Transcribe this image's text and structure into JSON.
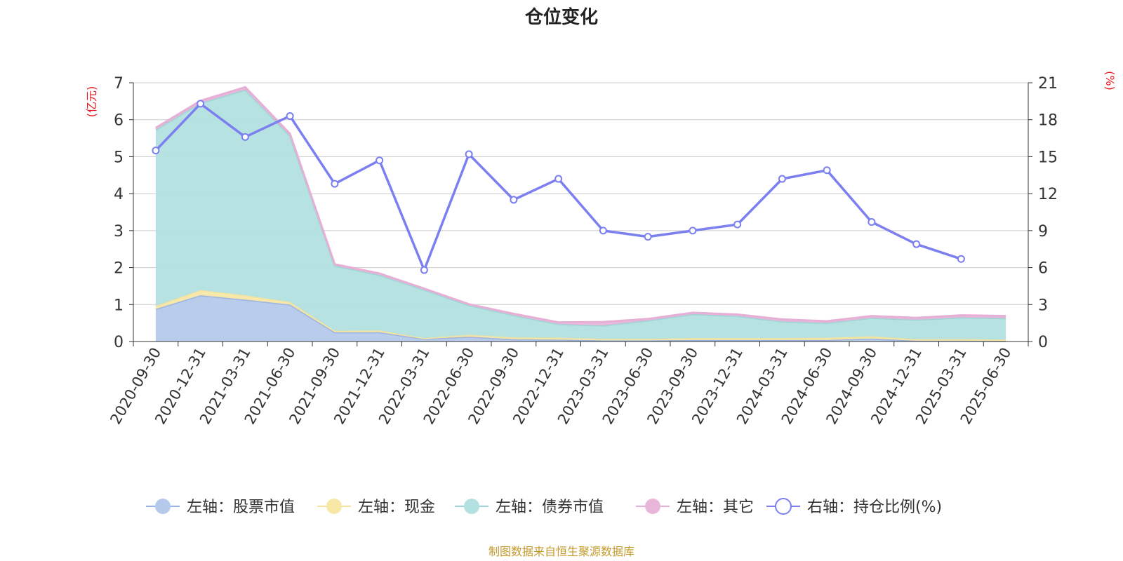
{
  "chart_data": {
    "type": "area",
    "title": "仓位变化",
    "left_unit": "(亿元)",
    "right_unit": "(%)",
    "source_note": "制图数据来自恒生聚源数据库",
    "categories": [
      "2020-09-30",
      "2020-12-31",
      "2021-03-31",
      "2021-06-30",
      "2021-09-30",
      "2021-12-31",
      "2022-03-31",
      "2022-06-30",
      "2022-09-30",
      "2022-12-31",
      "2023-03-31",
      "2023-06-30",
      "2023-09-30",
      "2023-12-31",
      "2024-03-31",
      "2024-06-30",
      "2024-09-30",
      "2024-12-31",
      "2025-03-31",
      "2025-06-30"
    ],
    "left_axis": {
      "min": 0,
      "max": 7,
      "ticks": [
        "0",
        "1",
        "2",
        "3",
        "4",
        "5",
        "6",
        "7"
      ]
    },
    "right_axis": {
      "min": 0,
      "max": 21,
      "ticks": [
        "0",
        "3",
        "6",
        "9",
        "12",
        "15",
        "18",
        "21"
      ]
    },
    "stacked_series": [
      {
        "name": "左轴：股票市值",
        "color": "#b5c9eb",
        "line": "#9bb4e0",
        "values": [
          0.88,
          1.25,
          1.13,
          1.0,
          0.25,
          0.25,
          0.07,
          0.13,
          0.06,
          0.05,
          0.03,
          0.03,
          0.04,
          0.04,
          0.04,
          0.04,
          0.08,
          0.02,
          0.02,
          0.01
        ]
      },
      {
        "name": "左轴：现金",
        "color": "#f7e8a8",
        "line": "#f5e39e",
        "values": [
          0.08,
          0.14,
          0.12,
          0.07,
          0.04,
          0.05,
          0.02,
          0.05,
          0.05,
          0.05,
          0.04,
          0.04,
          0.05,
          0.05,
          0.05,
          0.06,
          0.06,
          0.04,
          0.04,
          0.04
        ]
      },
      {
        "name": "左轴：债券市值",
        "color": "#b3e0e0",
        "line": "#9ed6d6",
        "values": [
          4.77,
          5.06,
          5.56,
          4.5,
          1.76,
          1.5,
          1.31,
          0.8,
          0.6,
          0.37,
          0.36,
          0.5,
          0.65,
          0.6,
          0.45,
          0.4,
          0.5,
          0.53,
          0.59,
          0.58
        ]
      },
      {
        "name": "左轴：其它",
        "color": "#e8b6d9",
        "line": "#e6b0d6",
        "values": [
          0.05,
          0.06,
          0.07,
          0.05,
          0.04,
          0.04,
          0.03,
          0.03,
          0.04,
          0.05,
          0.1,
          0.04,
          0.04,
          0.04,
          0.06,
          0.05,
          0.05,
          0.05,
          0.06,
          0.06
        ]
      }
    ],
    "line_series": {
      "name": "右轴：持仓比例(%)",
      "color": "#7b7ff0",
      "values": [
        15.5,
        19.3,
        16.6,
        18.3,
        12.8,
        14.7,
        5.8,
        15.2,
        11.5,
        13.2,
        9.0,
        8.5,
        9.0,
        9.5,
        13.2,
        13.9,
        9.7,
        7.9,
        6.7,
        null
      ]
    },
    "grid": true,
    "legend_position": "bottom"
  }
}
